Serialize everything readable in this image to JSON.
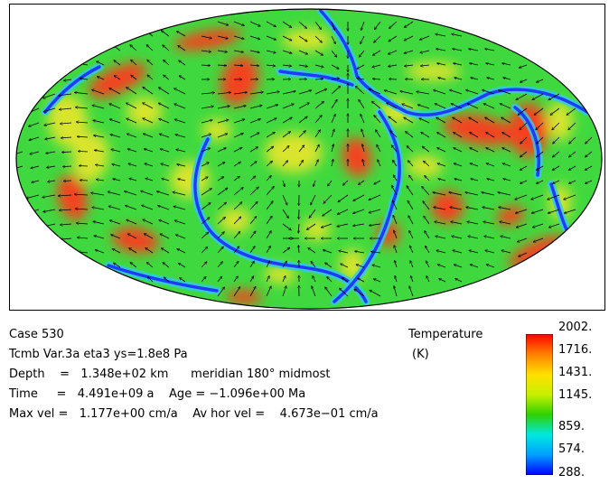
{
  "info": {
    "case": "Case 530",
    "line2": "Tcmb Var.3a eta3 ys=1.8e8 Pa",
    "depth": "Depth    =   1.348e+02 km      meridian 180° midmost",
    "time": "Time     =   4.491e+09 a    Age = −1.096e+00 Ma",
    "vel": "Max vel =   1.177e+00 cm/a    Av hor vel =    4.673e−01 cm/a"
  },
  "legend": {
    "title": "Temperature",
    "unit": "(K)",
    "ticks": [
      "2002.",
      "1716.",
      "1431.",
      "1145.",
      "859.",
      "574.",
      "288."
    ],
    "colors": [
      "#0000ff",
      "#00a0ff",
      "#00e8e0",
      "#30d000",
      "#c8f000",
      "#ffe000",
      "#ff8000",
      "#ff0000"
    ]
  },
  "map": {
    "background_color": "#3fd93f",
    "hot_color": "#ff3a1e",
    "warm_color": "#f5e62a",
    "cold_color": "#1e3cff",
    "cool_color": "#35c8e8"
  }
}
